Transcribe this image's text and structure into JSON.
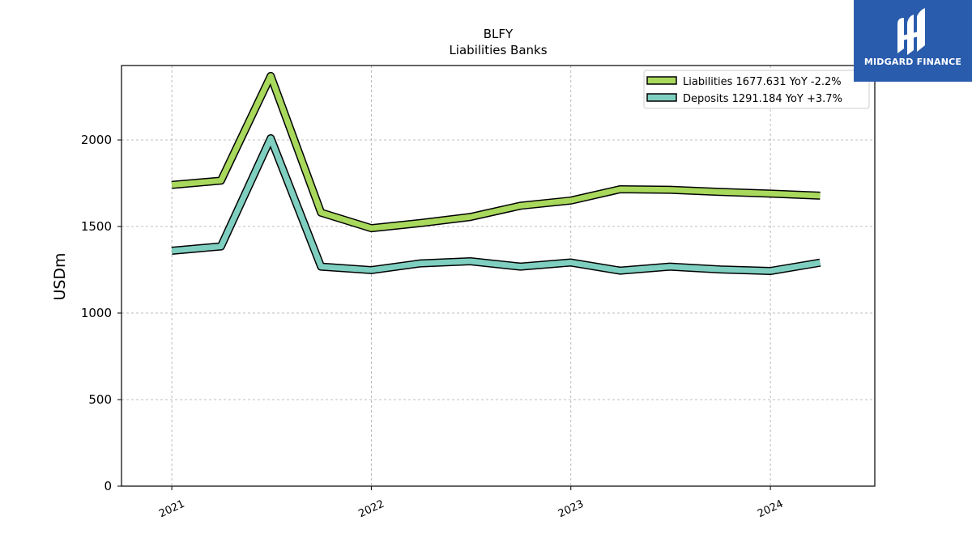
{
  "brand": {
    "name": "MIDGARD FINANCE",
    "color": "#2a5cad"
  },
  "chart_data": {
    "type": "line",
    "title": "BLFY",
    "subtitle": "Liabilities Banks",
    "xlabel": "",
    "ylabel": "USDm",
    "x": [
      "2021-01-01",
      "2021-04-01",
      "2021-07-01",
      "2021-10-01",
      "2022-01-01",
      "2022-04-01",
      "2022-07-01",
      "2022-10-01",
      "2023-01-01",
      "2023-04-01",
      "2023-07-01",
      "2023-10-01",
      "2024-01-01",
      "2024-04-01"
    ],
    "x_ticks": [
      "2021",
      "2022",
      "2023",
      "2024"
    ],
    "y_ticks": [
      0,
      500,
      1000,
      1500,
      2000
    ],
    "ylim": [
      0,
      2430
    ],
    "grid": true,
    "legend_position": "top-right",
    "series": [
      {
        "name": "Liabilities",
        "legend": "Liabilities  1677.631 YoY -2.2%",
        "color": "#a8d85c",
        "values": [
          1740,
          1765,
          2370,
          1580,
          1490,
          1520,
          1555,
          1620,
          1650,
          1715,
          1712,
          1700,
          1690,
          1678
        ]
      },
      {
        "name": "Deposits",
        "legend": "Deposits  1291.184 YoY +3.7%",
        "color": "#7fcfc0",
        "values": [
          1360,
          1385,
          2010,
          1268,
          1248,
          1287,
          1299,
          1268,
          1292,
          1245,
          1268,
          1252,
          1243,
          1291
        ]
      }
    ]
  }
}
